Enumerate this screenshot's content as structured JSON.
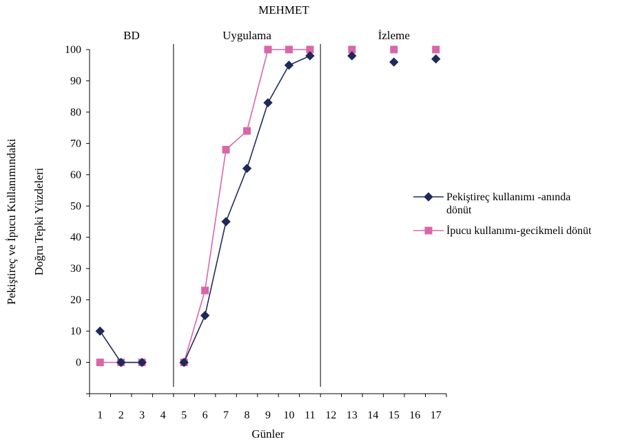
{
  "chart_data": {
    "type": "line",
    "title": "MEHMET",
    "xlabel": "Günler",
    "ylabel": [
      "Pekiştireç ve İpucu Kullanımındaki",
      "Doğru Tepki Yüzdeleri"
    ],
    "x_ticks": [
      1,
      2,
      3,
      4,
      5,
      6,
      7,
      8,
      9,
      10,
      11,
      12,
      13,
      14,
      15,
      16,
      17
    ],
    "xlim": [
      0.5,
      17.5
    ],
    "y_ticks": [
      0,
      10,
      20,
      30,
      40,
      50,
      60,
      70,
      80,
      90,
      100
    ],
    "ylim": [
      -10,
      100
    ],
    "phases": [
      {
        "label": "BD",
        "center": 2.5
      },
      {
        "label": "Uygulama",
        "center": 8
      },
      {
        "label": "İzleme",
        "center": 15
      }
    ],
    "phase_lines": [
      4.5,
      11.5
    ],
    "series": [
      {
        "name": "Pekiştireç kullanımı -anında dönüt",
        "name_lines": [
          "Pekiştireç kullanımı -anında",
          "dönüt"
        ],
        "marker": "diamond",
        "color": "#1f2a5a",
        "points": [
          [
            [
              1,
              10
            ],
            [
              2,
              0
            ],
            [
              3,
              0
            ]
          ],
          [
            [
              5,
              0
            ],
            [
              6,
              15
            ],
            [
              7,
              45
            ],
            [
              8,
              62
            ],
            [
              9,
              83
            ],
            [
              10,
              95
            ],
            [
              11,
              98
            ]
          ],
          [
            [
              13,
              98
            ]
          ],
          [
            [
              15,
              96
            ]
          ],
          [
            [
              17,
              97
            ]
          ]
        ]
      },
      {
        "name": "İpucu kullanımı-gecikmeli dönüt",
        "name_lines": [
          "İpucu kullanımı-gecikmeli dönüt"
        ],
        "marker": "square",
        "color": "#d966a8",
        "points": [
          [
            [
              1,
              0
            ],
            [
              2,
              0
            ],
            [
              3,
              0
            ]
          ],
          [
            [
              5,
              0
            ],
            [
              6,
              23
            ],
            [
              7,
              68
            ],
            [
              8,
              74
            ],
            [
              9,
              100
            ],
            [
              10,
              100
            ],
            [
              11,
              100
            ]
          ],
          [
            [
              13,
              100
            ]
          ],
          [
            [
              15,
              100
            ]
          ],
          [
            [
              17,
              100
            ]
          ]
        ]
      }
    ],
    "legend_placement": "right"
  }
}
